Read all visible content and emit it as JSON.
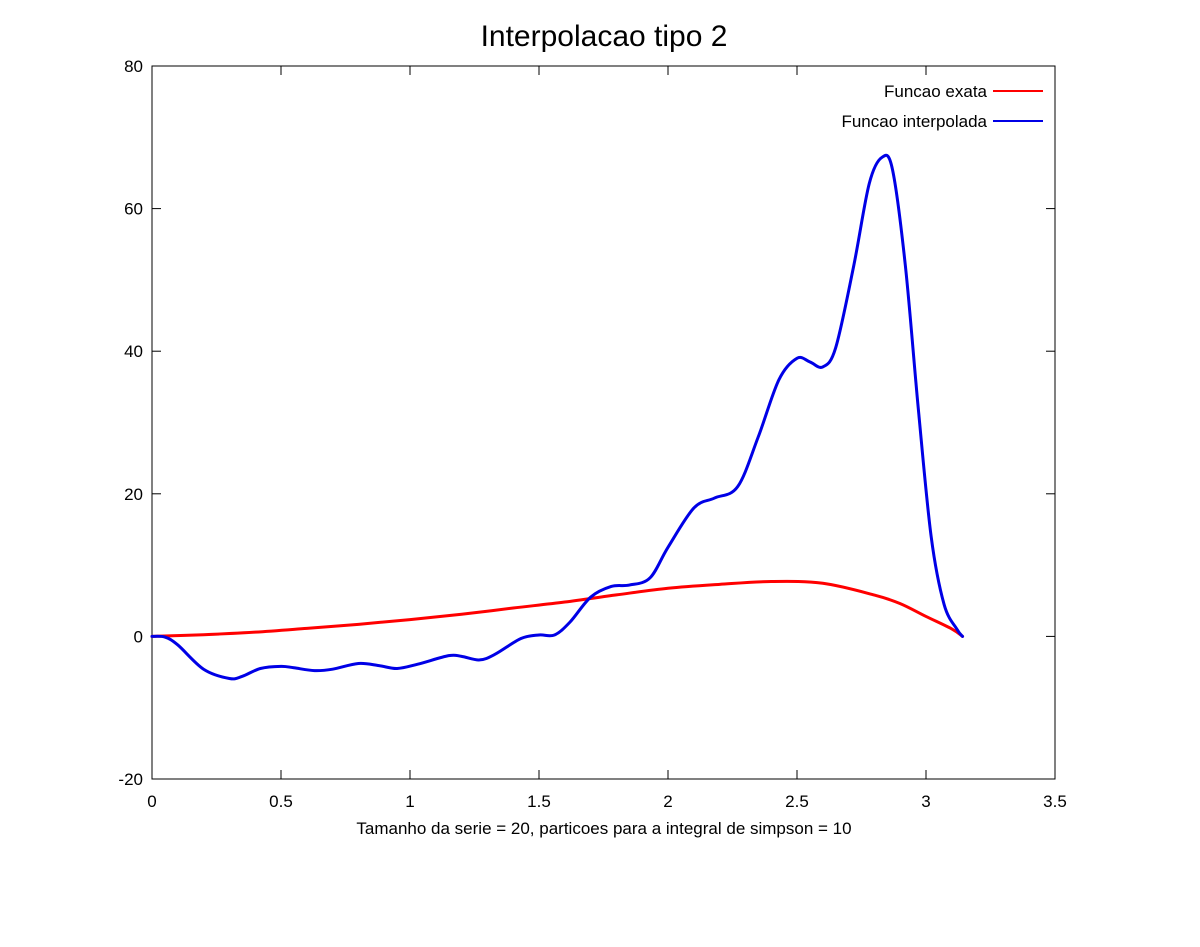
{
  "chart_data": {
    "type": "line",
    "title": "Interpolacao tipo 2",
    "xlabel": "Tamanho da serie = 20, particoes para a integral de simpson = 10",
    "ylabel": "",
    "xlim": [
      0,
      3.5
    ],
    "ylim": [
      -20,
      80
    ],
    "xticks": [
      0,
      0.5,
      1,
      1.5,
      2,
      2.5,
      3,
      3.5
    ],
    "xtick_labels": [
      "0",
      "0.5",
      "1",
      "1.5",
      "2",
      "2.5",
      "3",
      "3.5"
    ],
    "yticks": [
      -20,
      0,
      20,
      40,
      60,
      80
    ],
    "ytick_labels": [
      "-20",
      "0",
      "20",
      "40",
      "60",
      "80"
    ],
    "grid": false,
    "legend_position": "top-right",
    "series": [
      {
        "name": "Funcao exata",
        "color": "#ff0000",
        "x": [
          0,
          0.2,
          0.4,
          0.6,
          0.8,
          1.0,
          1.2,
          1.4,
          1.6,
          1.8,
          2.0,
          2.2,
          2.4,
          2.6,
          2.8,
          2.9,
          3.0,
          3.1,
          3.1416
        ],
        "y": [
          0,
          0.24,
          0.6,
          1.13,
          1.69,
          2.36,
          3.1,
          3.98,
          4.82,
          5.82,
          6.75,
          7.3,
          7.7,
          7.45,
          5.8,
          4.6,
          2.8,
          1.05,
          0
        ]
      },
      {
        "name": "Funcao interpolada",
        "color": "#0000e6",
        "x": [
          0,
          0.05,
          0.1,
          0.2,
          0.3,
          0.35,
          0.42,
          0.5,
          0.55,
          0.63,
          0.7,
          0.8,
          0.88,
          0.95,
          1.03,
          1.15,
          1.2,
          1.27,
          1.33,
          1.43,
          1.5,
          1.56,
          1.62,
          1.7,
          1.78,
          1.85,
          1.93,
          2.0,
          2.1,
          2.18,
          2.27,
          2.35,
          2.43,
          2.5,
          2.55,
          2.6,
          2.65,
          2.72,
          2.78,
          2.83,
          2.87,
          2.92,
          2.97,
          3.02,
          3.07,
          3.12,
          3.1416
        ],
        "y": [
          0,
          -0.1,
          -1.2,
          -4.6,
          -5.9,
          -5.6,
          -4.5,
          -4.2,
          -4.4,
          -4.8,
          -4.6,
          -3.8,
          -4.1,
          -4.5,
          -3.9,
          -2.7,
          -2.8,
          -3.3,
          -2.5,
          -0.3,
          0.2,
          0.2,
          2.0,
          5.5,
          7.0,
          7.2,
          8.2,
          12.5,
          18.0,
          19.4,
          21.0,
          28.0,
          36.0,
          39.0,
          38.5,
          37.8,
          40.5,
          52.0,
          63.5,
          67.2,
          65.5,
          52.0,
          32.0,
          14.0,
          4.5,
          1.0,
          0
        ]
      }
    ]
  }
}
